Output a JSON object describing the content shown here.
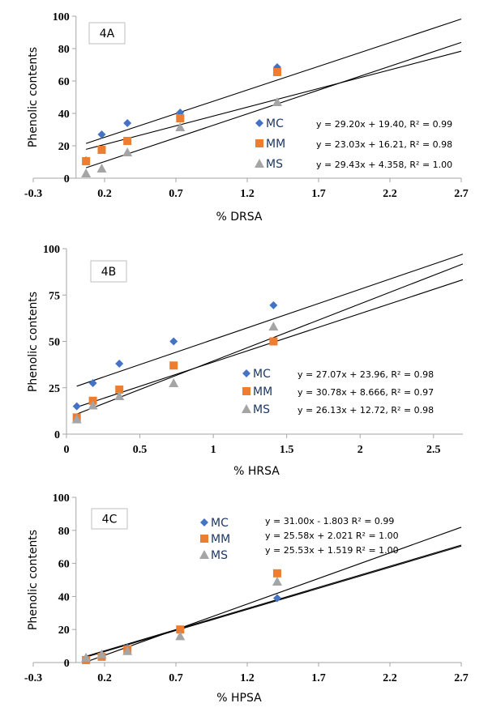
{
  "colors": {
    "MC": "#4472C4",
    "MM": "#ED7D31",
    "MS": "#A5A5A5",
    "axis": "#a6a6a6",
    "trend": "#000000"
  },
  "chart_data": [
    {
      "type": "scatter",
      "panel_label": "4A",
      "xlabel": "% DRSA",
      "ylabel": "Phenolic contents",
      "xlim": [
        -0.3,
        2.7
      ],
      "ylim": [
        0,
        100
      ],
      "xticks": [
        -0.3,
        0.2,
        0.7,
        1.2,
        1.7,
        2.2,
        2.7
      ],
      "xtick_labels": [
        "-0.3",
        "0.2",
        "0.7",
        "1.2",
        "1.7",
        "2.2",
        "2.7"
      ],
      "yticks": [
        0,
        20,
        40,
        60,
        80,
        100
      ],
      "ytick_labels": [
        "0",
        "20",
        "40",
        "60",
        "80",
        "100"
      ],
      "trend_x_range": [
        0.07,
        2.7
      ],
      "legend_position": "center-right",
      "series": [
        {
          "name": "MC",
          "marker": "diamond",
          "x": [
            0.07,
            0.18,
            0.36,
            0.73,
            1.41
          ],
          "y": [
            11,
            27,
            34,
            40.5,
            68.5
          ],
          "slope": 29.2,
          "intercept": 19.4,
          "equation": "y = 29.20x + 19.40, R² = 0.99"
        },
        {
          "name": "MM",
          "marker": "square",
          "x": [
            0.07,
            0.18,
            0.36,
            0.73,
            1.41
          ],
          "y": [
            10.5,
            17.5,
            23,
            37,
            65.5
          ],
          "slope": 23.03,
          "intercept": 16.21,
          "equation": "y = 23.03x + 16.21, R² = 0.98"
        },
        {
          "name": "MS",
          "marker": "triangle",
          "x": [
            0.07,
            0.18,
            0.36,
            0.73,
            1.41
          ],
          "y": [
            3,
            6,
            16,
            31.5,
            47
          ],
          "slope": 29.43,
          "intercept": 4.358,
          "equation": "y = 29.43x + 4.358, R² = 1.00"
        }
      ]
    },
    {
      "type": "scatter",
      "panel_label": "4B",
      "xlabel": "% HRSA",
      "ylabel": "Phenolic contents",
      "xlim": [
        0,
        2.7
      ],
      "ylim": [
        0,
        100
      ],
      "xticks": [
        0,
        0.5,
        1,
        1.5,
        2,
        2.5
      ],
      "xtick_labels": [
        "0",
        "0.5",
        "1",
        "1.5",
        "2",
        "2.5"
      ],
      "yticks": [
        0,
        25,
        50,
        75,
        100
      ],
      "ytick_labels": [
        "0",
        "25",
        "50",
        "75",
        "100"
      ],
      "trend_x_range": [
        0.07,
        2.7
      ],
      "legend_position": "center-right",
      "series": [
        {
          "name": "MC",
          "marker": "diamond",
          "x": [
            0.07,
            0.18,
            0.36,
            0.73,
            1.41
          ],
          "y": [
            15,
            27.5,
            38,
            50,
            69.5
          ],
          "slope": 27.07,
          "intercept": 23.96,
          "equation": "y = 27.07x + 23.96, R² = 0.98"
        },
        {
          "name": "MM",
          "marker": "square",
          "x": [
            0.07,
            0.18,
            0.36,
            0.73,
            1.41
          ],
          "y": [
            9,
            18,
            24,
            37,
            50
          ],
          "slope": 30.78,
          "intercept": 8.666,
          "equation": "y = 30.78x + 8.666, R² = 0.97"
        },
        {
          "name": "MS",
          "marker": "triangle",
          "x": [
            0.07,
            0.18,
            0.36,
            0.73,
            1.41
          ],
          "y": [
            8,
            15.5,
            20.5,
            27.5,
            58
          ],
          "slope": 26.13,
          "intercept": 12.72,
          "equation": "y = 26.13x + 12.72, R² = 0.98"
        }
      ]
    },
    {
      "type": "scatter",
      "panel_label": "4C",
      "xlabel": "% HPSA",
      "ylabel": "Phenolic contents",
      "xlim": [
        -0.3,
        2.7
      ],
      "ylim": [
        0,
        100
      ],
      "xticks": [
        -0.3,
        0.2,
        0.7,
        1.2,
        1.7,
        2.2,
        2.7
      ],
      "xtick_labels": [
        "-0.3",
        "0.2",
        "0.7",
        "1.2",
        "1.7",
        "2.2",
        "2.7"
      ],
      "yticks": [
        0,
        20,
        40,
        60,
        80,
        100
      ],
      "ytick_labels": [
        "0",
        "20",
        "40",
        "60",
        "80",
        "100"
      ],
      "trend_x_range": [
        0.07,
        2.7
      ],
      "legend_position": "top-center",
      "series": [
        {
          "name": "MC",
          "marker": "diamond",
          "x": [
            0.07,
            0.18,
            0.36,
            0.73,
            1.41
          ],
          "y": [
            2,
            4,
            9,
            20,
            39
          ],
          "slope": 31.0,
          "intercept": -1.803,
          "equation": "y = 31.00x - 1.803 R² = 0.99"
        },
        {
          "name": "MM",
          "marker": "square",
          "x": [
            0.07,
            0.18,
            0.36,
            0.73,
            1.41
          ],
          "y": [
            1.5,
            3.5,
            8,
            20,
            54
          ],
          "slope": 25.58,
          "intercept": 2.021,
          "equation": "y = 25.58x + 2.021 R² = 1.00"
        },
        {
          "name": "MS",
          "marker": "triangle",
          "x": [
            0.07,
            0.18,
            0.36,
            0.73,
            1.41
          ],
          "y": [
            3,
            5,
            7,
            16,
            49
          ],
          "slope": 25.53,
          "intercept": 1.519,
          "equation": "y = 25.53x + 1.519 R² = 1.00"
        }
      ]
    }
  ]
}
